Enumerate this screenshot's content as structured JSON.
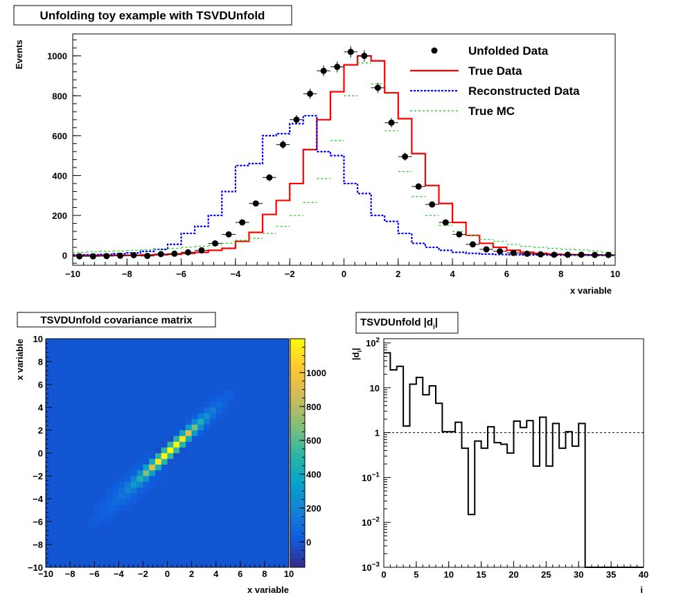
{
  "chart_data": [
    {
      "type": "line",
      "title": "Unfolding toy example with TSVDUnfold",
      "xlabel": "x variable",
      "ylabel": "Events",
      "xlim": [
        -10,
        10
      ],
      "ylim": [
        -50,
        1110
      ],
      "xticks": [
        -10,
        -8,
        -6,
        -4,
        -2,
        0,
        2,
        4,
        6,
        8,
        10
      ],
      "yticks": [
        0,
        200,
        400,
        600,
        800,
        1000
      ],
      "bin_edges": [
        -10,
        -9.5,
        -9,
        -8.5,
        -8,
        -7.5,
        -7,
        -6.5,
        -6,
        -5.5,
        -5,
        -4.5,
        -4,
        -3.5,
        -3,
        -2.5,
        -2,
        -1.5,
        -1,
        -0.5,
        0,
        0.5,
        1,
        1.5,
        2,
        2.5,
        3,
        3.5,
        4,
        4.5,
        5,
        5.5,
        6,
        6.5,
        7,
        7.5,
        8,
        8.5,
        9,
        9.5,
        10
      ],
      "legend_position": "top-right",
      "series": [
        {
          "name": "Unfolded Data",
          "style": "markers",
          "color": "#000000",
          "values": [
            -5,
            -5,
            -4,
            -2,
            1,
            -3,
            6,
            8,
            15,
            25,
            60,
            105,
            165,
            260,
            390,
            555,
            680,
            810,
            925,
            945,
            1020,
            1000,
            840,
            665,
            495,
            345,
            255,
            165,
            105,
            55,
            30,
            20,
            12,
            8,
            5,
            3,
            3,
            3,
            2,
            2
          ]
        },
        {
          "name": "True Data",
          "style": "solid",
          "color": "#ff0000",
          "values": [
            0,
            0,
            0,
            0,
            0,
            2,
            3,
            5,
            10,
            15,
            25,
            35,
            70,
            115,
            205,
            275,
            360,
            530,
            680,
            820,
            955,
            1000,
            975,
            815,
            685,
            510,
            350,
            260,
            165,
            100,
            60,
            40,
            25,
            15,
            10,
            6,
            4,
            3,
            2,
            1
          ]
        },
        {
          "name": "Reconstructed Data",
          "style": "dotted",
          "color": "#0000ff",
          "values": [
            3,
            3,
            5,
            8,
            12,
            20,
            30,
            55,
            110,
            145,
            200,
            320,
            450,
            460,
            600,
            610,
            660,
            700,
            520,
            500,
            360,
            310,
            200,
            170,
            110,
            60,
            40,
            25,
            15,
            10,
            6,
            4,
            3,
            2,
            2,
            1,
            1,
            1,
            0,
            0
          ]
        },
        {
          "name": "True MC",
          "style": "dashed",
          "color": "#33cc33",
          "values": [
            15,
            18,
            20,
            22,
            25,
            28,
            30,
            35,
            40,
            45,
            50,
            60,
            75,
            85,
            110,
            145,
            200,
            265,
            385,
            575,
            800,
            965,
            860,
            625,
            420,
            295,
            200,
            150,
            120,
            100,
            80,
            70,
            55,
            45,
            40,
            35,
            30,
            28,
            22,
            15
          ]
        }
      ]
    },
    {
      "type": "heatmap",
      "title": "TSVDUnfold covariance matrix",
      "xlabel": "x variable",
      "ylabel": "x variable",
      "xlim": [
        -10,
        10
      ],
      "ylim": [
        -10,
        10
      ],
      "xticks": [
        -10,
        -8,
        -6,
        -4,
        -2,
        0,
        2,
        4,
        6,
        8,
        10
      ],
      "yticks": [
        -10,
        -8,
        -6,
        -4,
        -2,
        0,
        2,
        4,
        6,
        8,
        10
      ],
      "zlim": [
        -150,
        1200
      ],
      "colorbar_ticks": [
        0,
        200,
        400,
        600,
        800,
        1000
      ],
      "description_values": {
        "peak": 1180,
        "diagonal_center": [
          0.5,
          0.5
        ],
        "background": 0
      }
    },
    {
      "type": "line",
      "title": "TSVDUnfold |d_i|",
      "title_text": "TSVDUnfold |d",
      "title_sub": "i",
      "title_end": "|",
      "xlabel": "i",
      "ylabel_main": "|d",
      "ylabel_sub": "i",
      "ylabel_end": "|",
      "xlim": [
        0,
        40
      ],
      "ylog": true,
      "ylim": [
        0.001,
        100
      ],
      "xticks": [
        0,
        5,
        10,
        15,
        20,
        25,
        30,
        35,
        40
      ],
      "ytick_labels": [
        {
          "base": "10",
          "exp": "2",
          "value": 100
        },
        {
          "base": "10",
          "exp": "",
          "value": 10
        },
        {
          "base": "1",
          "exp": "",
          "value": 1
        },
        {
          "base": "10",
          "exp": "-1",
          "value": 0.1
        },
        {
          "base": "10",
          "exp": "-2",
          "value": 0.01
        },
        {
          "base": "10",
          "exp": "-3",
          "value": 0.001
        }
      ],
      "reference_line": 1,
      "series": [
        {
          "name": "",
          "color": "#000000",
          "values": [
            60,
            25,
            30,
            1.4,
            12,
            17,
            7,
            11,
            4.5,
            1.05,
            1.05,
            1.7,
            0.45,
            0.015,
            0.65,
            0.45,
            1.35,
            0.6,
            0.55,
            0.35,
            1.8,
            1.3,
            1.85,
            0.18,
            2.2,
            0.18,
            1.6,
            0.45,
            1.05,
            0.5,
            1.6,
            0.001,
            0.001,
            0.001,
            0.001,
            0.001,
            0.001,
            0.001,
            0.001,
            0.001
          ]
        }
      ]
    }
  ]
}
